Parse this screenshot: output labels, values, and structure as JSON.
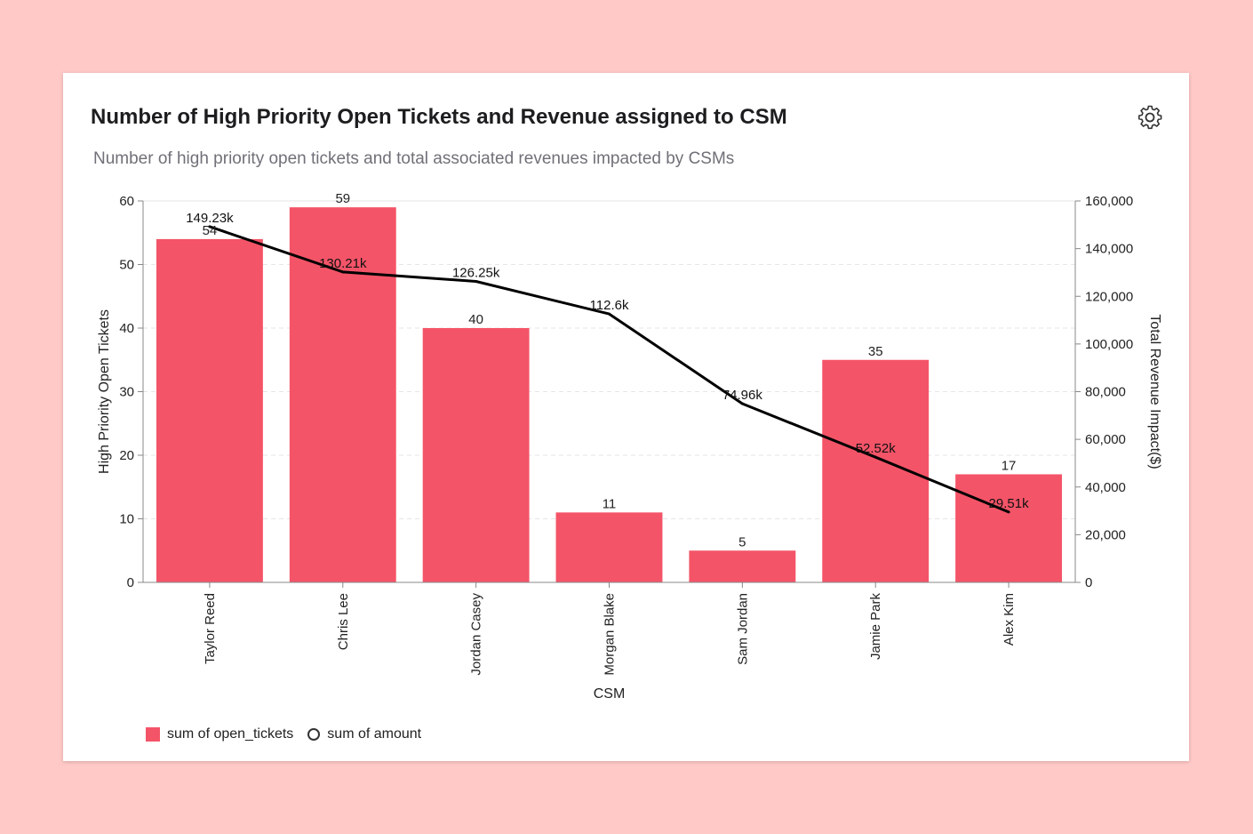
{
  "card": {
    "title": "Number of High Priority Open Tickets and Revenue assigned to CSM",
    "subtitle": "Number of high priority open tickets and total associated revenues impacted by CSMs",
    "settings_icon": "gear-icon"
  },
  "chart_data": {
    "type": "bar",
    "title": "Number of High Priority Open Tickets and Revenue assigned to CSM",
    "xlabel": "CSM",
    "ylabel": "High Priority Open Tickets",
    "y2label": "Total Revenue Impact($)",
    "categories": [
      "Taylor Reed",
      "Chris Lee",
      "Jordan Casey",
      "Morgan Blake",
      "Sam Jordan",
      "Jamie Park",
      "Alex Kim"
    ],
    "series": [
      {
        "name": "sum of open_tickets",
        "type": "bar",
        "axis": "left",
        "values": [
          54,
          59,
          40,
          11,
          5,
          35,
          17
        ],
        "labels": [
          "54",
          "59",
          "40",
          "11",
          "5",
          "35",
          "17"
        ],
        "color": "#f45468"
      },
      {
        "name": "sum of amount",
        "type": "line",
        "axis": "right",
        "values": [
          149230,
          130210,
          126250,
          112600,
          74960,
          52520,
          29510
        ],
        "labels": [
          "149.23k",
          "130.21k",
          "126.25k",
          "112.6k",
          "74.96k",
          "52.52k",
          "29.51k"
        ],
        "color": "#000000"
      }
    ],
    "ylim": [
      0,
      60
    ],
    "yticks": [
      "0",
      "10",
      "20",
      "30",
      "40",
      "50",
      "60"
    ],
    "y2lim": [
      0,
      160000
    ],
    "y2ticks": [
      "0",
      "20,000",
      "40,000",
      "60,000",
      "80,000",
      "100,000",
      "120,000",
      "140,000",
      "160,000"
    ],
    "grid": true,
    "legend": "bottom-left"
  },
  "legend": {
    "items": [
      {
        "label": "sum of open_tickets",
        "marker": "square"
      },
      {
        "label": "sum of amount",
        "marker": "circle"
      }
    ]
  }
}
